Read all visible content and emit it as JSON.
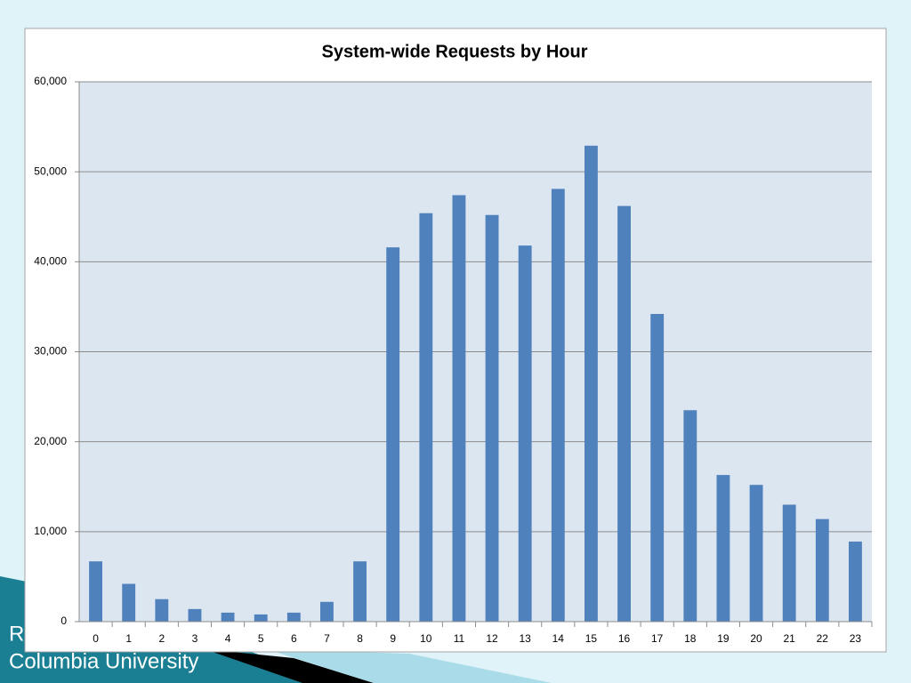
{
  "chart_data": {
    "type": "bar",
    "title": "System-wide Requests by Hour",
    "categories": [
      "0",
      "1",
      "2",
      "3",
      "4",
      "5",
      "6",
      "7",
      "8",
      "9",
      "10",
      "11",
      "12",
      "13",
      "14",
      "15",
      "16",
      "17",
      "18",
      "19",
      "20",
      "21",
      "22",
      "23"
    ],
    "values": [
      6700,
      4200,
      2500,
      1400,
      1000,
      800,
      1000,
      2200,
      6700,
      41600,
      45400,
      47400,
      45200,
      41800,
      48100,
      52900,
      46200,
      34200,
      23500,
      16300,
      15200,
      13000,
      11400,
      8900
    ],
    "color": "#4f81bd",
    "ylim": [
      0,
      60000
    ],
    "yticks": [
      0,
      {
        "value": 10000,
        "label": "10,000"
      },
      {
        "value": 20000,
        "label": "20,000"
      },
      {
        "value": 30000,
        "label": "30,000"
      },
      {
        "value": 40000,
        "label": "40,000"
      },
      {
        "value": 50000,
        "label": "50,000"
      },
      {
        "value": 60000,
        "label": "60,000"
      }
    ],
    "grid": true
  },
  "slide": {
    "footer_lines": [
      "R",
      "Columbia University"
    ]
  }
}
